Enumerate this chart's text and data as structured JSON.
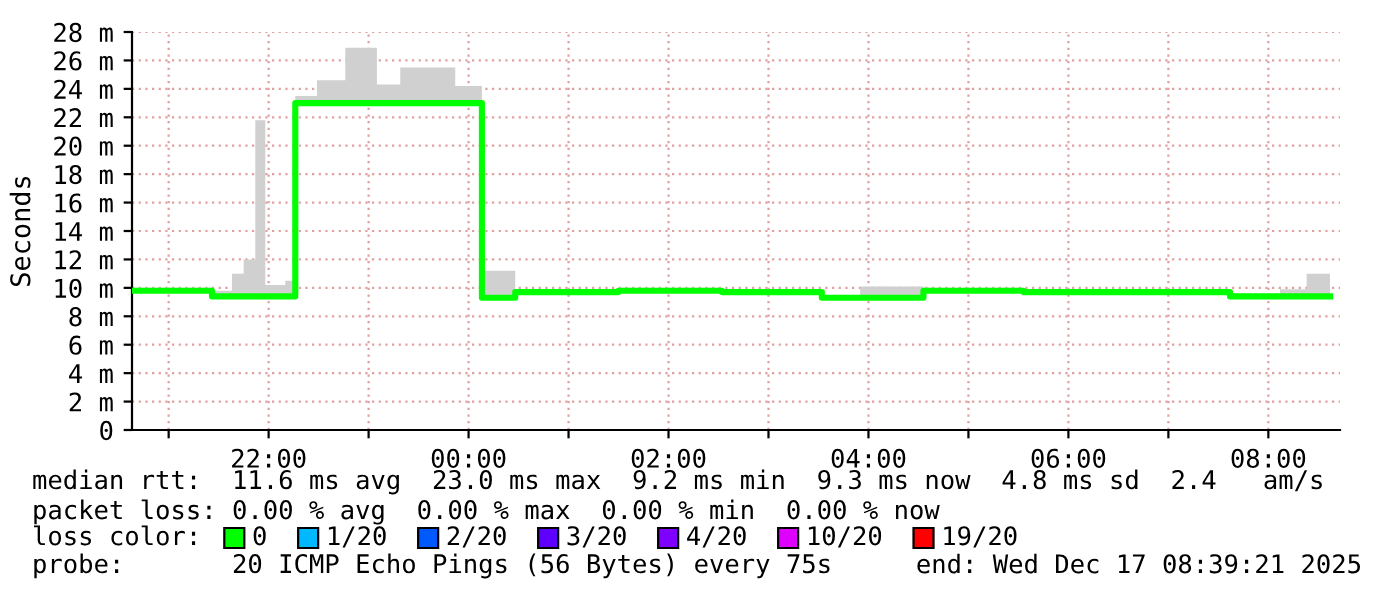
{
  "chart_data": {
    "type": "step",
    "ylabel": "Seconds",
    "x": [
      "2025-12-16T20:39",
      "2025-12-16T21:00",
      "2025-12-16T21:26",
      "2025-12-16T21:38",
      "2025-12-16T21:45",
      "2025-12-16T21:52",
      "2025-12-16T21:58",
      "2025-12-16T22:10",
      "2025-12-16T22:16",
      "2025-12-16T22:29",
      "2025-12-16T22:46",
      "2025-12-16T23:05",
      "2025-12-16T23:19",
      "2025-12-16T23:52",
      "2025-12-17T00:08",
      "2025-12-17T00:28",
      "2025-12-17T01:30",
      "2025-12-17T02:32",
      "2025-12-17T03:32",
      "2025-12-17T03:55",
      "2025-12-17T04:33",
      "2025-12-17T05:33",
      "2025-12-17T07:37",
      "2025-12-17T08:07",
      "2025-12-17T08:23",
      "2025-12-17T08:37"
    ],
    "series": [
      {
        "color": "#00ff00",
        "values": [
          9.8,
          9.8,
          9.4,
          9.4,
          9.4,
          9.4,
          9.4,
          9.4,
          23.0,
          23.0,
          23.0,
          23.0,
          23.0,
          23.0,
          9.3,
          9.7,
          9.8,
          9.7,
          9.3,
          9.3,
          9.8,
          9.7,
          9.4,
          9.4,
          9.4,
          9.4
        ],
        "lower": [
          9.8,
          9.8,
          9.4,
          9.4,
          9.4,
          9.4,
          9.4,
          9.4,
          23.0,
          23.0,
          23.0,
          23.0,
          23.0,
          23.0,
          9.3,
          9.7,
          9.8,
          9.7,
          9.3,
          9.3,
          9.8,
          9.7,
          9.4,
          9.4,
          9.4,
          9.4
        ],
        "upper": [
          10.0,
          10.0,
          9.8,
          11.0,
          12.0,
          21.8,
          10.2,
          10.5,
          23.5,
          24.6,
          26.9,
          24.3,
          25.5,
          24.2,
          11.2,
          9.9,
          10.0,
          9.9,
          9.5,
          10.1,
          10.0,
          9.9,
          9.6,
          9.9,
          11.0,
          9.6
        ]
      }
    ],
    "xlim": [
      "2025-12-16T20:38",
      "2025-12-17T08:43"
    ],
    "xticks": [
      {
        "value": "2025-12-16T21:00",
        "label": null
      },
      {
        "value": "2025-12-16T22:00",
        "label": "22:00"
      },
      {
        "value": "2025-12-16T23:00",
        "label": null
      },
      {
        "value": "2025-12-17T00:00",
        "label": "00:00"
      },
      {
        "value": "2025-12-17T01:00",
        "label": null
      },
      {
        "value": "2025-12-17T02:00",
        "label": "02:00"
      },
      {
        "value": "2025-12-17T03:00",
        "label": null
      },
      {
        "value": "2025-12-17T04:00",
        "label": "04:00"
      },
      {
        "value": "2025-12-17T05:00",
        "label": null
      },
      {
        "value": "2025-12-17T06:00",
        "label": "06:00"
      },
      {
        "value": "2025-12-17T07:00",
        "label": null
      },
      {
        "value": "2025-12-17T08:00",
        "label": "08:00"
      }
    ],
    "ylim": [
      0,
      28
    ],
    "yticks": [
      0,
      {
        "value": 2,
        "label": "2 m"
      },
      {
        "value": 4,
        "label": "4 m"
      },
      {
        "value": 6,
        "label": "6 m"
      },
      {
        "value": 8,
        "label": "8 m"
      },
      {
        "value": 10,
        "label": "10 m"
      },
      {
        "value": 12,
        "label": "12 m"
      },
      {
        "value": 14,
        "label": "14 m"
      },
      {
        "value": 16,
        "label": "16 m"
      },
      {
        "value": 18,
        "label": "18 m"
      },
      {
        "value": 20,
        "label": "20 m"
      },
      {
        "value": 22,
        "label": "22 m"
      },
      {
        "value": 24,
        "label": "24 m"
      },
      {
        "value": 26,
        "label": "26 m"
      },
      {
        "value": 28,
        "label": "28 m"
      }
    ],
    "grid": true,
    "annotations": [
      "median rtt:  11.6 ms avg  23.0 ms max  9.2 ms min  9.3 ms now  4.8 ms sd  2.4   am/s",
      "packet loss: 0.00 % avg  0.00 % max  0.00 % min  0.00 % now",
      "loss color:",
      "0",
      "1/20",
      "2/20",
      "3/20",
      "4/20",
      "10/20",
      "19/20",
      "probe:       20 ICMP Echo Pings (56 Bytes) every 75s",
      "end: Wed Dec 17 08:39:21 2025"
    ]
  }
}
